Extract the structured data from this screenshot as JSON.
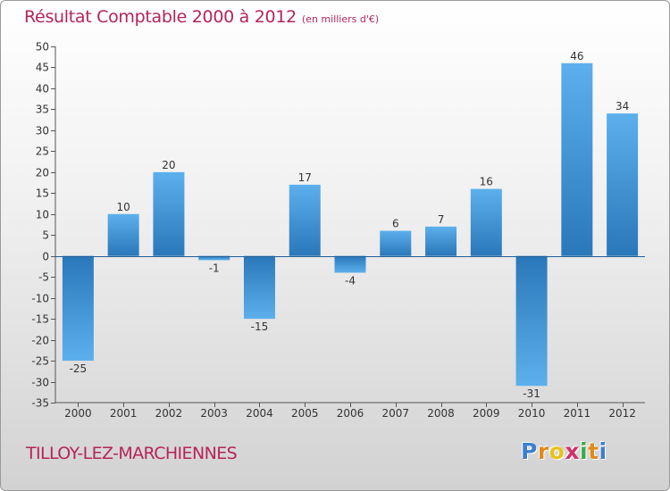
{
  "chart_data": {
    "type": "bar",
    "title": "Résultat Comptable 2000 à 2012",
    "subtitle": "(en milliers d'€)",
    "categories": [
      "2000",
      "2001",
      "2002",
      "2003",
      "2004",
      "2005",
      "2006",
      "2007",
      "2008",
      "2009",
      "2010",
      "2011",
      "2012"
    ],
    "values": [
      -25,
      10,
      20,
      -1,
      -15,
      17,
      -4,
      6,
      7,
      16,
      -31,
      46,
      34
    ],
    "value_labels": [
      "-25",
      "10",
      "20",
      "-1",
      "-15",
      "17",
      "-4",
      "6",
      "7",
      "16",
      "-31",
      "46",
      "34"
    ],
    "ylim": [
      -35,
      50
    ],
    "yticks": [
      "50",
      "45",
      "40",
      "35",
      "30",
      "25",
      "20",
      "15",
      "10",
      "5",
      "0",
      "-5",
      "-10",
      "-15",
      "-20",
      "-25",
      "-30",
      "-35"
    ],
    "grid": false,
    "xlabel": "",
    "ylabel": ""
  },
  "place_name": "TILLOY-LEZ-MARCHIENNES",
  "logo": {
    "letters": [
      "P",
      "r",
      "o",
      "x",
      "i",
      "t",
      "i"
    ],
    "colors": [
      "#3b7fd0",
      "#e08a1e",
      "#e8c21a",
      "#d0306a",
      "#3aa84a",
      "#e08a1e",
      "#3b7fd0"
    ]
  },
  "colors": {
    "title": "#b5245a",
    "bar_light": "#5cb0ec",
    "bar_dark": "#2a77b9",
    "axis": "#555555"
  }
}
